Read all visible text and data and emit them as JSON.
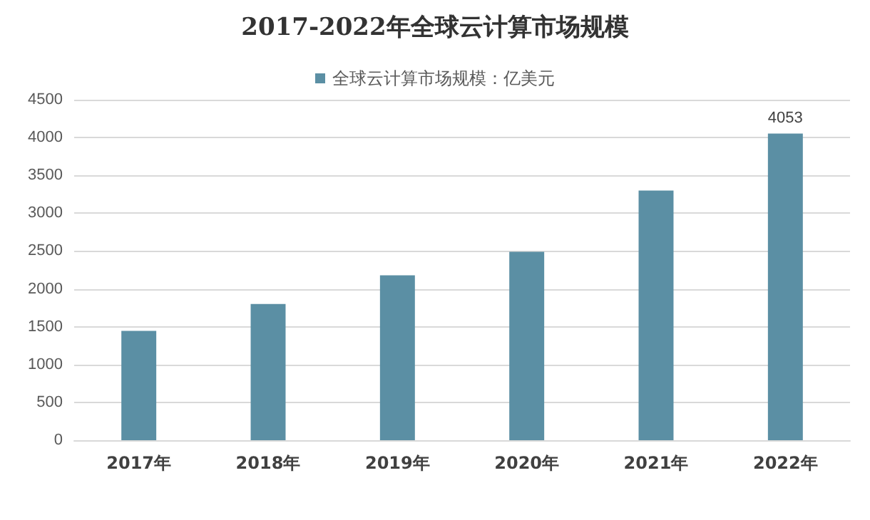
{
  "chart_data": {
    "type": "bar",
    "title": "2017-2022年全球云计算市场规模",
    "categories": [
      "2017年",
      "2018年",
      "2019年",
      "2020年",
      "2021年",
      "2022年"
    ],
    "series": [
      {
        "name": "全球云计算市场规模：亿美元",
        "color": "#5b8fa4",
        "values": [
          1445,
          1800,
          2180,
          2490,
          3300,
          4053
        ],
        "value_labels": [
          null,
          null,
          null,
          null,
          null,
          "4053"
        ]
      }
    ],
    "ylim": [
      0,
      4500
    ],
    "yticks": [
      0,
      500,
      1000,
      1500,
      2000,
      2500,
      3000,
      3500,
      4000,
      4500
    ],
    "grid": "y",
    "legend": "top"
  }
}
